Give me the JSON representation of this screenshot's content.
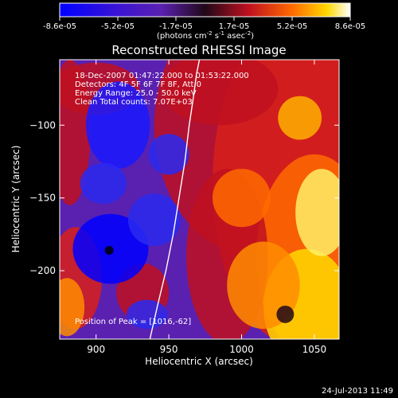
{
  "colorbar": {
    "tick_labels": [
      "-8.6e-05",
      "-5.2e-05",
      "-1.7e-05",
      "1.7e-05",
      "5.2e-05",
      "8.6e-05"
    ],
    "units_text": "(photons cm",
    "units_exp1": "-2",
    "units_mid": " s",
    "units_exp2": "-1",
    "units_end": " asec",
    "units_exp3": "-2",
    "units_close": ")"
  },
  "header": {
    "title": "Reconstructed RHESSI Image"
  },
  "info": {
    "line1": "18-Dec-2007 01:47:22.000 to 01:53:22.000",
    "line2": "Detectors: 4F 5F 6F 7F 8F, Att 0",
    "line3": "Energy Range: 25.0 - 50.0 keV",
    "line4": "Clean    Total counts: 7.07E+03",
    "peak": "Position of Peak = [1016,-62]"
  },
  "footer": {
    "timestamp": "24-Jul-2013 11:49"
  },
  "chart_data": {
    "type": "heatmap",
    "title": "Reconstructed RHESSI Image",
    "xlabel": "Heliocentric X (arcsec)",
    "ylabel": "Heliocentric Y (arcsec)",
    "xlim": [
      875,
      1067
    ],
    "ylim": [
      -247,
      -55
    ],
    "x_ticks": [
      900,
      950,
      1000,
      1050
    ],
    "y_ticks": [
      -100,
      -150,
      -200
    ],
    "colormap": "blue-purple-red-yellow-white",
    "color_range": [
      -8.6e-05,
      8.6e-05
    ],
    "limb_curve": {
      "x": [
        937,
        942,
        948,
        953,
        957,
        961,
        964,
        967,
        969,
        971
      ],
      "y": [
        -247,
        -225,
        -200,
        -175,
        -150,
        -125,
        -100,
        -80,
        -65,
        -55
      ]
    },
    "peak_position": [
      1016,
      -62
    ]
  }
}
